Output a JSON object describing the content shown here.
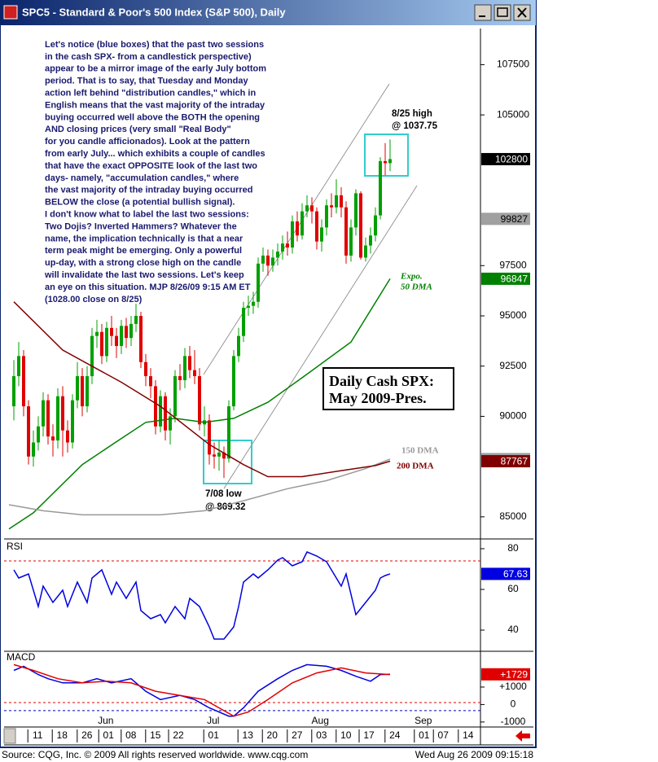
{
  "window": {
    "title": "SPC5 - Standard & Poor's 500 Index (S&P 500), Daily"
  },
  "footer": {
    "source": "Source: CQG, Inc. © 2009 All rights reserved worldwide. www.cqg.com",
    "timestamp": "Wed Aug 26 2009 09:15:18"
  },
  "chart_data": [
    {
      "type": "candlestick",
      "xlim": [
        -2,
        95.5
      ],
      "ylim": [
        83900,
        109300
      ],
      "yticks": [
        85000,
        90000,
        92500,
        95000,
        97500,
        105000,
        107500
      ],
      "up_color": "#00a000",
      "down_color": "#e00000",
      "open": [
        90500,
        92000,
        93000,
        90500,
        88000,
        88700,
        89500,
        90800,
        89000,
        88800,
        91000,
        89300,
        88700,
        90800,
        92000,
        90500,
        92000,
        94000,
        94200,
        93000,
        94400,
        94000,
        93500,
        94500,
        93900,
        94600,
        95000,
        92700,
        92000,
        91500,
        89500,
        91000,
        89300,
        90000,
        92000,
        91800,
        93000,
        92300,
        92000,
        89600,
        89800,
        88100,
        88000,
        88200,
        87900,
        90500,
        93000,
        94000,
        95400,
        95500,
        95700,
        97600,
        98000,
        97500,
        97900,
        98200,
        98600,
        98400,
        99700,
        99000,
        100200,
        100500,
        100200,
        98700,
        99400,
        100500,
        100400,
        101000,
        100400,
        98000,
        99400,
        101100,
        97900,
        98500,
        99000,
        100000,
        102700,
        102600
      ],
      "high": [
        92800,
        93700,
        93300,
        90800,
        89300,
        90000,
        91200,
        91100,
        89600,
        91400,
        91500,
        89800,
        91100,
        92700,
        92400,
        92500,
        94400,
        94800,
        94600,
        94700,
        95000,
        94400,
        94800,
        94900,
        95000,
        95600,
        95200,
        93100,
        92400,
        91800,
        91300,
        91200,
        90400,
        92300,
        92600,
        93400,
        93500,
        93300,
        92400,
        90500,
        90100,
        88700,
        88800,
        88500,
        90800,
        93300,
        94400,
        95700,
        96000,
        96200,
        97900,
        98400,
        98300,
        98300,
        98600,
        99000,
        99200,
        100000,
        100200,
        100600,
        101000,
        100900,
        100400,
        99800,
        100800,
        101100,
        101800,
        101400,
        100700,
        99800,
        101300,
        101200,
        98900,
        99400,
        100400,
        102900,
        103600,
        103775
      ],
      "low": [
        89800,
        91500,
        90000,
        87600,
        87500,
        88300,
        89000,
        88600,
        88000,
        88400,
        88000,
        88200,
        88400,
        90400,
        90000,
        90200,
        91600,
        93400,
        92600,
        92700,
        93500,
        92900,
        93100,
        93400,
        93500,
        94200,
        92400,
        91500,
        90900,
        89100,
        89200,
        88800,
        88600,
        89700,
        91300,
        91400,
        91900,
        91600,
        89300,
        89000,
        87600,
        87400,
        87300,
        86932,
        87700,
        90300,
        92700,
        93700,
        95000,
        95100,
        95400,
        97200,
        97000,
        97200,
        97500,
        97800,
        98000,
        98100,
        98700,
        98800,
        99900,
        99600,
        98300,
        98200,
        99000,
        99900,
        100100,
        99900,
        97600,
        97700,
        99000,
        97800,
        97700,
        98100,
        98700,
        99800,
        102000,
        102200
      ],
      "close": [
        92000,
        93000,
        90500,
        88000,
        88700,
        89500,
        90800,
        89000,
        88800,
        91000,
        89300,
        88700,
        90800,
        92000,
        90500,
        92000,
        94000,
        94200,
        93000,
        94400,
        94000,
        93500,
        94500,
        93900,
        94600,
        95000,
        92700,
        92000,
        91500,
        89500,
        91000,
        89300,
        90000,
        92000,
        91800,
        93000,
        92300,
        92000,
        89600,
        89800,
        88100,
        88000,
        88200,
        87900,
        90500,
        93000,
        94000,
        95400,
        95500,
        95700,
        97600,
        98000,
        97500,
        97900,
        98200,
        98600,
        98400,
        99700,
        99000,
        100200,
        100500,
        100200,
        98700,
        99400,
        100500,
        100400,
        101000,
        100400,
        98000,
        99400,
        101100,
        97900,
        98500,
        99000,
        100000,
        102700,
        102600,
        102800
      ],
      "series": [
        {
          "name": "50 DMA",
          "color": "#008000",
          "x": [
            -1,
            4,
            14,
            22,
            27,
            33,
            39,
            45,
            52,
            60,
            69,
            77
          ],
          "values": [
            84400,
            85200,
            87600,
            88900,
            89700,
            89900,
            89700,
            89900,
            90700,
            92100,
            93700,
            96847
          ]
        },
        {
          "name": "150 DMA",
          "color": "#999999",
          "x": [
            -1,
            6,
            14,
            22,
            30,
            39,
            47,
            56,
            64,
            72,
            77
          ],
          "values": [
            85600,
            85300,
            85100,
            85100,
            85100,
            85300,
            85800,
            86400,
            86800,
            87400,
            87874
          ]
        },
        {
          "name": "200 DMA",
          "color": "#800000",
          "x": [
            0,
            10,
            22,
            30,
            40,
            47,
            52,
            59,
            67,
            74,
            77
          ],
          "values": [
            95700,
            93300,
            91700,
            90500,
            88600,
            87600,
            87000,
            87000,
            87300,
            87550,
            87767
          ]
        }
      ],
      "ema_note": "Expo.",
      "tags": [
        {
          "value": 102800,
          "color": "#000000",
          "text_color": "#ffffff"
        },
        {
          "value": 99827,
          "color": "#a0a0a0",
          "text_color": "#000000"
        },
        {
          "value": 96847,
          "color": "#008000",
          "text_color": "#ffffff"
        },
        {
          "value": 87874,
          "color": "#a0a0a0",
          "text_color": "#000000"
        },
        {
          "value": 87767,
          "color": "#800000",
          "text_color": "#ffffff"
        }
      ],
      "commentary": [
        "Let's notice (blue boxes) that the past two sessions",
        "in the cash SPX- from a candlestick perspective)",
        "appear to be a mirror image of the early July bottom",
        "period. That is to say, that Tuesday and Monday",
        "action left behind \"distribution candles,\" which in",
        "English means that the vast majority of the intraday",
        "buying occurred well above the BOTH the opening",
        "AND closing prices (very small \"Real Body\"",
        "for you candle afficionados).  Look at the pattern",
        "from early July... which exhibits a couple of candles",
        "that have the exact OPPOSITE look of the last two",
        "days- namely, \"accumulation candles,\" where",
        "the vast majority of the intraday buying occurred",
        "BELOW the close (a potential bullish signal).",
        "I don't know what to label the last two sessions:",
        "Two Dojis?  Inverted Hammers? Whatever the",
        "name, the implication technically is that a near",
        "term peak might be emerging. Only a powerful",
        "up-day, with a strong close high on the candle",
        "will invalidate the last two sessions.  Let's keep",
        "an eye on this situation.  MJP 8/26/09  9:15 AM ET",
        "(1028.00 close on 8/25)"
      ],
      "high_note": [
        "8/25 high",
        "@ 1037.75"
      ],
      "low_note": [
        "7/08 low",
        "@ 869.32"
      ],
      "box_note": [
        "Daily Cash SPX:",
        "May 2009-Pres."
      ]
    },
    {
      "type": "line",
      "title": "RSI",
      "xlim": [
        -2,
        95.5
      ],
      "ylim": [
        29.6,
        84.4
      ],
      "yticks": [
        40,
        60,
        80
      ],
      "hlines": [
        {
          "value": 74,
          "color": "#e00000"
        }
      ],
      "series": [
        {
          "color": "#0000e0",
          "x": [
            0,
            1,
            3,
            5,
            6,
            8,
            10,
            11,
            13,
            15,
            16,
            18,
            20,
            21,
            23,
            25,
            26,
            28,
            30,
            31,
            33,
            35,
            36,
            38,
            40,
            41,
            43,
            45,
            46,
            47,
            49,
            50,
            52,
            54,
            55,
            57,
            59,
            60,
            62,
            64,
            65,
            67,
            68,
            70,
            72,
            74,
            75,
            76,
            77
          ],
          "values": [
            69.6,
            65.6,
            67.6,
            51.6,
            61.6,
            53.6,
            59.6,
            51.6,
            63.6,
            53.6,
            65.6,
            69.6,
            57.6,
            63.6,
            55.6,
            63.6,
            49.6,
            45.6,
            47.6,
            43.6,
            51.6,
            45.6,
            55.6,
            51.6,
            41.6,
            35.6,
            35.6,
            41.6,
            51.6,
            63.6,
            67.6,
            65.6,
            69.6,
            74.4,
            75.6,
            71.6,
            73.6,
            78.4,
            76.4,
            73.6,
            69.6,
            61.6,
            67.6,
            47.6,
            53.6,
            59.6,
            65.6,
            66.8,
            67.63
          ]
        }
      ],
      "tags": [
        {
          "value": 67.63,
          "color": "#0000e0",
          "text_color": "#ffffff"
        }
      ]
    },
    {
      "type": "line",
      "title": "MACD",
      "xlim": [
        -2,
        95.5
      ],
      "ylim": [
        -1286,
        3048
      ],
      "yticks": [
        {
          "value": -1000,
          "label": "-1000"
        },
        0,
        {
          "value": 1000,
          "label": "+1000"
        }
      ],
      "hlines": [
        {
          "value": 110,
          "color": "#e00000"
        },
        {
          "value": -350,
          "color": "#0000c0"
        }
      ],
      "series": [
        {
          "color": "#0000e0",
          "x": [
            0,
            2,
            5,
            7,
            10,
            14,
            17,
            20,
            24,
            27,
            30,
            34,
            37,
            40,
            44,
            45,
            47,
            50,
            54,
            57,
            60,
            64,
            67,
            70,
            73,
            75,
            77
          ],
          "values": [
            1952,
            2190,
            1714,
            1476,
            1238,
            1238,
            1476,
            1238,
            1476,
            762,
            286,
            524,
            286,
            -190,
            -667,
            -667,
            -190,
            762,
            1476,
            1952,
            2286,
            2190,
            1952,
            1619,
            1333,
            1714,
            1729
          ]
        },
        {
          "color": "#e00000",
          "x": [
            0,
            4,
            9,
            14,
            19,
            24,
            29,
            34,
            39,
            42,
            45,
            48,
            52,
            57,
            62,
            67,
            72,
            77
          ],
          "values": [
            2286,
            1952,
            1476,
            1238,
            1333,
            1238,
            762,
            524,
            286,
            -190,
            -667,
            -429,
            286,
            1238,
            1810,
            2095,
            1810,
            1714
          ]
        }
      ],
      "tags": [
        {
          "value": 1729,
          "label": "+1729",
          "color": "#e00000",
          "text_color": "#ffffff"
        }
      ],
      "xticks": [
        {
          "value": 4.2,
          "label": "11"
        },
        {
          "value": 9.2,
          "label": "18"
        },
        {
          "value": 14.3,
          "label": "26"
        },
        {
          "value": 18.7,
          "label": "01"
        },
        {
          "value": 23.3,
          "label": "08"
        },
        {
          "value": 28.3,
          "label": "15"
        },
        {
          "value": 33,
          "label": "22"
        },
        {
          "value": 40.2,
          "label": "01"
        },
        {
          "value": 47.2,
          "label": "13"
        },
        {
          "value": 52.2,
          "label": "20"
        },
        {
          "value": 57.3,
          "label": "27"
        },
        {
          "value": 62.3,
          "label": "03"
        },
        {
          "value": 67.3,
          "label": "10"
        },
        {
          "value": 72,
          "label": "17"
        },
        {
          "value": 77.3,
          "label": "24"
        },
        {
          "value": 83.3,
          "label": "01"
        },
        {
          "value": 87.2,
          "label": "07"
        },
        {
          "value": 92.3,
          "label": "14"
        }
      ],
      "month_labels": [
        {
          "value": 18.8,
          "label": "Jun"
        },
        {
          "value": 40.8,
          "label": "Jul"
        },
        {
          "value": 62.7,
          "label": "Aug"
        },
        {
          "value": 83.8,
          "label": "Sep"
        }
      ]
    }
  ]
}
